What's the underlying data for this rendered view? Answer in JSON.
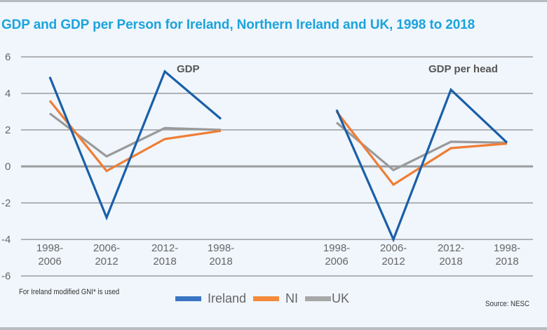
{
  "chart_data": {
    "type": "line",
    "title": "GDP and GDP per Person for Ireland, Northern Ireland and UK, 1998 to 2018",
    "ylim": [
      -6,
      6
    ],
    "yticks": [
      6,
      4,
      2,
      0,
      -2,
      -4,
      -6
    ],
    "grid": true,
    "legend_position": "bottom-center",
    "legend": [
      {
        "name": "Ireland",
        "color": "#1a5fa8",
        "swatch_color": "#3a75c4"
      },
      {
        "name": "NI",
        "color": "#ef7d35",
        "swatch_color": "#f58a3c"
      },
      {
        "name": "UK",
        "color": "#9a9a9a",
        "swatch_color": "#a8a8a8"
      }
    ],
    "panels": [
      {
        "label": "GDP",
        "categories": [
          [
            "1998-",
            "2006"
          ],
          [
            "2006-",
            "2012"
          ],
          [
            "2012-",
            "2018"
          ],
          [
            "1998-",
            "2018"
          ]
        ],
        "series": [
          {
            "name": "Ireland",
            "values": [
              4.9,
              -2.8,
              5.2,
              2.6
            ]
          },
          {
            "name": "NI",
            "values": [
              3.6,
              -0.25,
              1.5,
              1.95
            ]
          },
          {
            "name": "UK",
            "values": [
              2.9,
              0.55,
              2.1,
              2.0
            ]
          }
        ]
      },
      {
        "label": "GDP per head",
        "categories": [
          [
            "1998-",
            "2006"
          ],
          [
            "2006-",
            "2012"
          ],
          [
            "2012-",
            "2018"
          ],
          [
            "1998-",
            "2018"
          ]
        ],
        "series": [
          {
            "name": "Ireland",
            "values": [
              3.1,
              -4.0,
              4.2,
              1.3
            ]
          },
          {
            "name": "NI",
            "values": [
              3.0,
              -1.0,
              1.0,
              1.25
            ]
          },
          {
            "name": "UK",
            "values": [
              2.4,
              -0.2,
              1.35,
              1.3
            ]
          }
        ]
      }
    ]
  },
  "footnote": "For Ireland modified GNI* is used",
  "source": "Source: NESC"
}
